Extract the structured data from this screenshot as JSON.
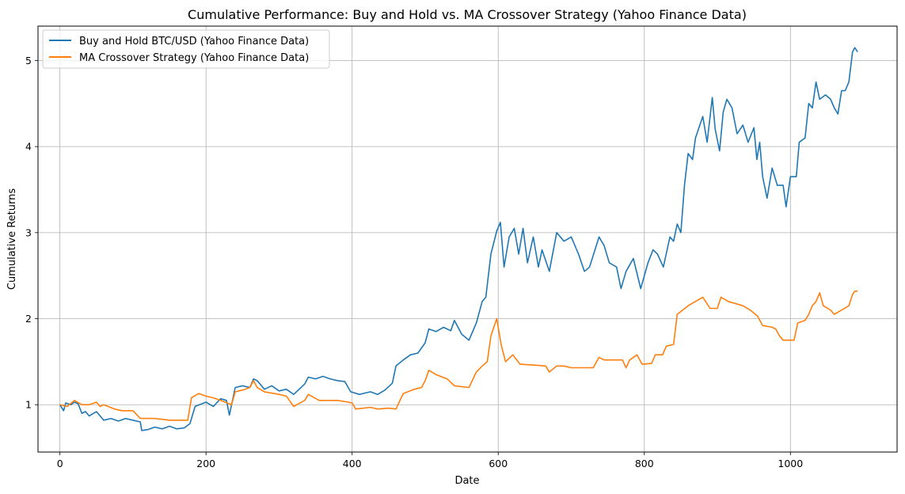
{
  "chart_data": {
    "type": "line",
    "title": "Cumulative Performance: Buy and Hold vs. MA Crossover Strategy (Yahoo Finance Data)",
    "xlabel": "Date",
    "ylabel": "Cumulative Returns",
    "xlim": [
      -30,
      1146
    ],
    "ylim": [
      0.45,
      5.4
    ],
    "xticks": [
      0,
      200,
      400,
      600,
      800,
      1000
    ],
    "yticks": [
      1,
      2,
      3,
      4,
      5
    ],
    "grid": true,
    "legend_position": "top-left",
    "series": [
      {
        "name": "Buy and Hold BTC/USD (Yahoo Finance Data)",
        "color": "#1f77b4",
        "points": [
          [
            0,
            1.0
          ],
          [
            5,
            0.93
          ],
          [
            8,
            1.02
          ],
          [
            15,
            1.0
          ],
          [
            20,
            1.03
          ],
          [
            25,
            1.01
          ],
          [
            30,
            0.9
          ],
          [
            35,
            0.92
          ],
          [
            40,
            0.87
          ],
          [
            50,
            0.92
          ],
          [
            60,
            0.82
          ],
          [
            70,
            0.84
          ],
          [
            80,
            0.81
          ],
          [
            90,
            0.84
          ],
          [
            100,
            0.82
          ],
          [
            110,
            0.8
          ],
          [
            112,
            0.7
          ],
          [
            120,
            0.71
          ],
          [
            130,
            0.74
          ],
          [
            140,
            0.72
          ],
          [
            150,
            0.75
          ],
          [
            160,
            0.72
          ],
          [
            170,
            0.73
          ],
          [
            178,
            0.78
          ],
          [
            185,
            0.98
          ],
          [
            200,
            1.03
          ],
          [
            210,
            0.98
          ],
          [
            220,
            1.07
          ],
          [
            228,
            1.05
          ],
          [
            232,
            0.88
          ],
          [
            240,
            1.2
          ],
          [
            250,
            1.22
          ],
          [
            260,
            1.2
          ],
          [
            265,
            1.3
          ],
          [
            270,
            1.28
          ],
          [
            280,
            1.18
          ],
          [
            290,
            1.22
          ],
          [
            300,
            1.16
          ],
          [
            310,
            1.18
          ],
          [
            320,
            1.12
          ],
          [
            335,
            1.24
          ],
          [
            340,
            1.32
          ],
          [
            350,
            1.3
          ],
          [
            360,
            1.33
          ],
          [
            370,
            1.3
          ],
          [
            380,
            1.28
          ],
          [
            390,
            1.27
          ],
          [
            398,
            1.15
          ],
          [
            410,
            1.12
          ],
          [
            425,
            1.15
          ],
          [
            435,
            1.12
          ],
          [
            445,
            1.17
          ],
          [
            455,
            1.25
          ],
          [
            460,
            1.45
          ],
          [
            470,
            1.52
          ],
          [
            480,
            1.58
          ],
          [
            490,
            1.6
          ],
          [
            500,
            1.72
          ],
          [
            505,
            1.88
          ],
          [
            515,
            1.85
          ],
          [
            525,
            1.9
          ],
          [
            535,
            1.86
          ],
          [
            540,
            1.98
          ],
          [
            550,
            1.82
          ],
          [
            560,
            1.75
          ],
          [
            570,
            1.95
          ],
          [
            578,
            2.2
          ],
          [
            583,
            2.25
          ],
          [
            590,
            2.75
          ],
          [
            598,
            3.02
          ],
          [
            603,
            3.12
          ],
          [
            608,
            2.6
          ],
          [
            615,
            2.95
          ],
          [
            622,
            3.05
          ],
          [
            628,
            2.75
          ],
          [
            634,
            3.05
          ],
          [
            640,
            2.65
          ],
          [
            648,
            2.95
          ],
          [
            655,
            2.6
          ],
          [
            660,
            2.8
          ],
          [
            670,
            2.55
          ],
          [
            680,
            3.0
          ],
          [
            690,
            2.9
          ],
          [
            700,
            2.95
          ],
          [
            710,
            2.75
          ],
          [
            718,
            2.55
          ],
          [
            725,
            2.6
          ],
          [
            738,
            2.95
          ],
          [
            745,
            2.85
          ],
          [
            752,
            2.65
          ],
          [
            762,
            2.6
          ],
          [
            768,
            2.35
          ],
          [
            775,
            2.55
          ],
          [
            785,
            2.7
          ],
          [
            795,
            2.35
          ],
          [
            805,
            2.65
          ],
          [
            812,
            2.8
          ],
          [
            818,
            2.75
          ],
          [
            826,
            2.6
          ],
          [
            835,
            2.95
          ],
          [
            840,
            2.9
          ],
          [
            845,
            3.1
          ],
          [
            850,
            3.0
          ],
          [
            855,
            3.55
          ],
          [
            860,
            3.92
          ],
          [
            866,
            3.85
          ],
          [
            870,
            4.1
          ],
          [
            880,
            4.35
          ],
          [
            886,
            4.05
          ],
          [
            893,
            4.57
          ],
          [
            897,
            4.2
          ],
          [
            903,
            3.95
          ],
          [
            908,
            4.4
          ],
          [
            913,
            4.55
          ],
          [
            920,
            4.45
          ],
          [
            927,
            4.15
          ],
          [
            935,
            4.25
          ],
          [
            942,
            4.05
          ],
          [
            950,
            4.22
          ],
          [
            954,
            3.85
          ],
          [
            958,
            4.05
          ],
          [
            962,
            3.65
          ],
          [
            968,
            3.4
          ],
          [
            975,
            3.75
          ],
          [
            982,
            3.55
          ],
          [
            990,
            3.55
          ],
          [
            994,
            3.3
          ],
          [
            1000,
            3.65
          ],
          [
            1008,
            3.65
          ],
          [
            1012,
            4.05
          ],
          [
            1020,
            4.1
          ],
          [
            1025,
            4.5
          ],
          [
            1030,
            4.45
          ],
          [
            1035,
            4.75
          ],
          [
            1040,
            4.55
          ],
          [
            1048,
            4.6
          ],
          [
            1055,
            4.55
          ],
          [
            1060,
            4.45
          ],
          [
            1065,
            4.38
          ],
          [
            1070,
            4.65
          ],
          [
            1075,
            4.65
          ],
          [
            1080,
            4.75
          ],
          [
            1085,
            5.1
          ],
          [
            1088,
            5.15
          ],
          [
            1092,
            5.1
          ]
        ]
      },
      {
        "name": "MA Crossover Strategy (Yahoo Finance Data)",
        "color": "#ff7f0e",
        "points": [
          [
            0,
            1.0
          ],
          [
            10,
            0.98
          ],
          [
            20,
            1.05
          ],
          [
            30,
            1.0
          ],
          [
            40,
            1.0
          ],
          [
            50,
            1.03
          ],
          [
            55,
            0.98
          ],
          [
            60,
            1.0
          ],
          [
            75,
            0.95
          ],
          [
            85,
            0.93
          ],
          [
            100,
            0.93
          ],
          [
            110,
            0.84
          ],
          [
            130,
            0.84
          ],
          [
            140,
            0.83
          ],
          [
            150,
            0.82
          ],
          [
            160,
            0.82
          ],
          [
            175,
            0.82
          ],
          [
            180,
            1.08
          ],
          [
            190,
            1.13
          ],
          [
            200,
            1.1
          ],
          [
            210,
            1.08
          ],
          [
            220,
            1.05
          ],
          [
            235,
            1.0
          ],
          [
            240,
            1.15
          ],
          [
            250,
            1.17
          ],
          [
            260,
            1.2
          ],
          [
            265,
            1.28
          ],
          [
            270,
            1.2
          ],
          [
            280,
            1.15
          ],
          [
            300,
            1.12
          ],
          [
            310,
            1.1
          ],
          [
            320,
            0.98
          ],
          [
            335,
            1.05
          ],
          [
            340,
            1.12
          ],
          [
            355,
            1.05
          ],
          [
            380,
            1.05
          ],
          [
            395,
            1.03
          ],
          [
            400,
            1.02
          ],
          [
            405,
            0.95
          ],
          [
            425,
            0.97
          ],
          [
            435,
            0.95
          ],
          [
            450,
            0.96
          ],
          [
            460,
            0.95
          ],
          [
            470,
            1.13
          ],
          [
            485,
            1.18
          ],
          [
            495,
            1.2
          ],
          [
            500,
            1.28
          ],
          [
            505,
            1.4
          ],
          [
            515,
            1.35
          ],
          [
            530,
            1.3
          ],
          [
            540,
            1.22
          ],
          [
            560,
            1.2
          ],
          [
            570,
            1.38
          ],
          [
            578,
            1.45
          ],
          [
            585,
            1.5
          ],
          [
            590,
            1.8
          ],
          [
            598,
            2.0
          ],
          [
            604,
            1.7
          ],
          [
            610,
            1.5
          ],
          [
            620,
            1.58
          ],
          [
            630,
            1.47
          ],
          [
            650,
            1.46
          ],
          [
            665,
            1.45
          ],
          [
            670,
            1.38
          ],
          [
            680,
            1.45
          ],
          [
            690,
            1.45
          ],
          [
            700,
            1.43
          ],
          [
            730,
            1.43
          ],
          [
            738,
            1.55
          ],
          [
            745,
            1.52
          ],
          [
            770,
            1.52
          ],
          [
            775,
            1.43
          ],
          [
            780,
            1.52
          ],
          [
            790,
            1.58
          ],
          [
            797,
            1.47
          ],
          [
            810,
            1.48
          ],
          [
            815,
            1.58
          ],
          [
            825,
            1.58
          ],
          [
            830,
            1.68
          ],
          [
            840,
            1.7
          ],
          [
            845,
            2.05
          ],
          [
            860,
            2.15
          ],
          [
            870,
            2.2
          ],
          [
            880,
            2.25
          ],
          [
            890,
            2.12
          ],
          [
            900,
            2.12
          ],
          [
            905,
            2.25
          ],
          [
            915,
            2.2
          ],
          [
            935,
            2.15
          ],
          [
            945,
            2.1
          ],
          [
            955,
            2.03
          ],
          [
            962,
            1.92
          ],
          [
            975,
            1.9
          ],
          [
            980,
            1.88
          ],
          [
            985,
            1.8
          ],
          [
            990,
            1.75
          ],
          [
            1005,
            1.75
          ],
          [
            1010,
            1.95
          ],
          [
            1020,
            1.98
          ],
          [
            1025,
            2.05
          ],
          [
            1030,
            2.15
          ],
          [
            1035,
            2.2
          ],
          [
            1040,
            2.3
          ],
          [
            1045,
            2.15
          ],
          [
            1055,
            2.1
          ],
          [
            1060,
            2.05
          ],
          [
            1070,
            2.1
          ],
          [
            1080,
            2.15
          ],
          [
            1085,
            2.28
          ],
          [
            1088,
            2.32
          ],
          [
            1092,
            2.32
          ]
        ]
      }
    ]
  }
}
